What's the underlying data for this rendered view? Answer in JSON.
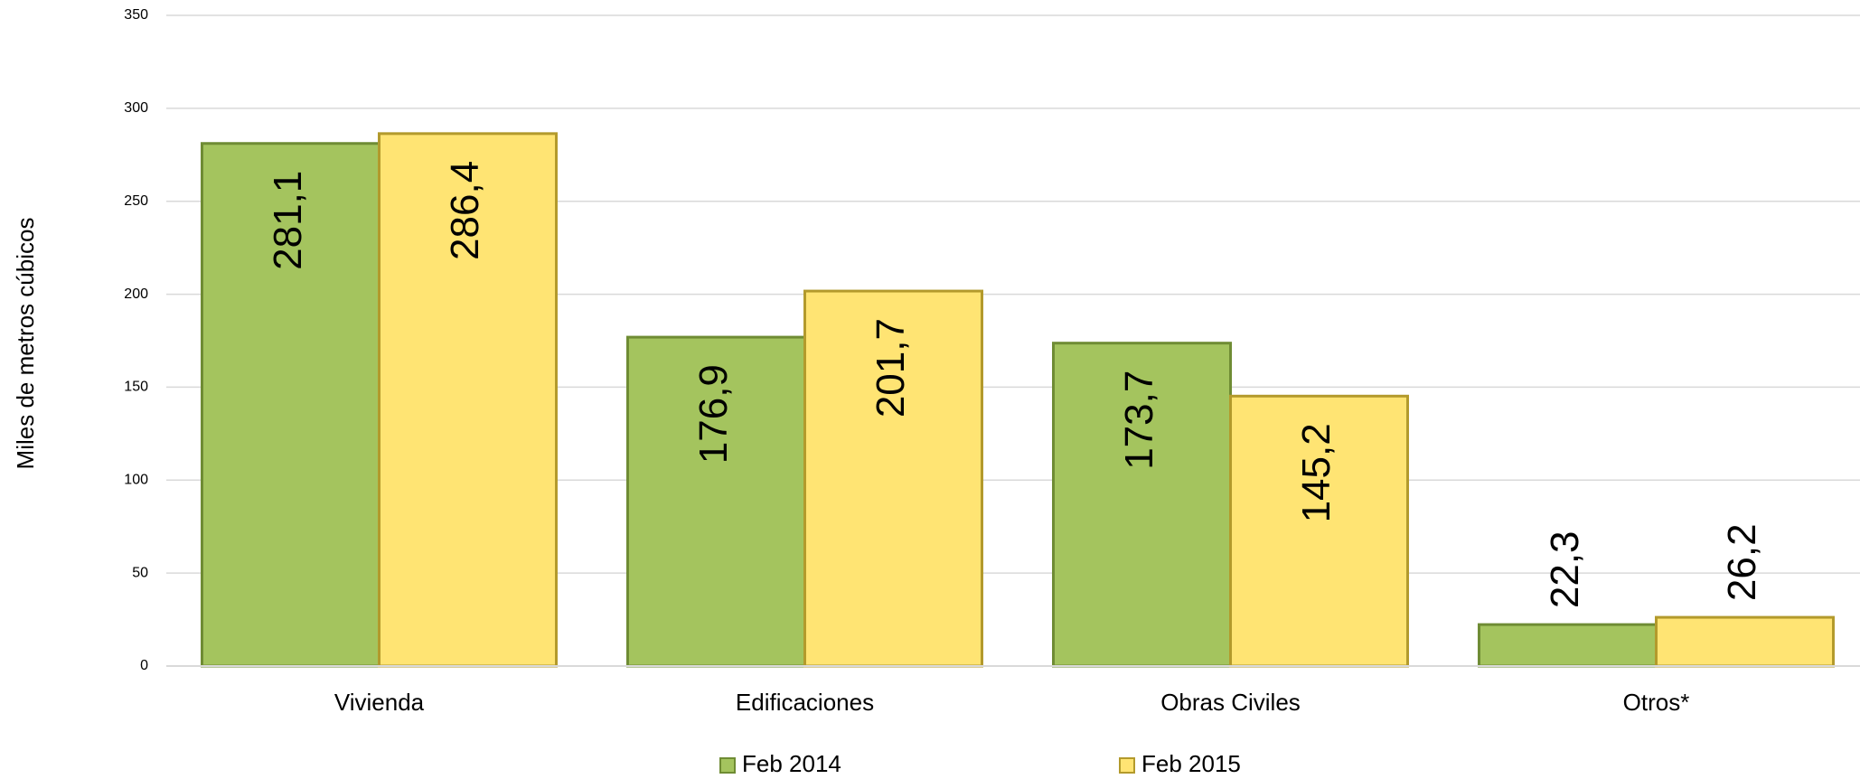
{
  "chart_data": {
    "type": "bar",
    "y_label": "Miles de metros cúbicos",
    "categories": [
      "Vivienda",
      "Edificaciones",
      "Obras Civiles",
      "Otros*"
    ],
    "series": [
      {
        "name": "Feb 2014",
        "color": "#a4c45e",
        "values": [
          281.1,
          176.9,
          173.7,
          22.3
        ],
        "value_labels": [
          "281,1",
          "176,9",
          "173,7",
          "22,3"
        ]
      },
      {
        "name": "Feb 2015",
        "color": "#ffe473",
        "values": [
          286.4,
          201.7,
          145.2,
          26.2
        ],
        "value_labels": [
          "286,4",
          "201,7",
          "145,2",
          "26,2"
        ]
      }
    ],
    "ylim": [
      0,
      350
    ],
    "yticks": [
      0,
      50,
      100,
      150,
      200,
      250,
      300,
      350
    ],
    "grid": true,
    "legend": "bottom"
  }
}
